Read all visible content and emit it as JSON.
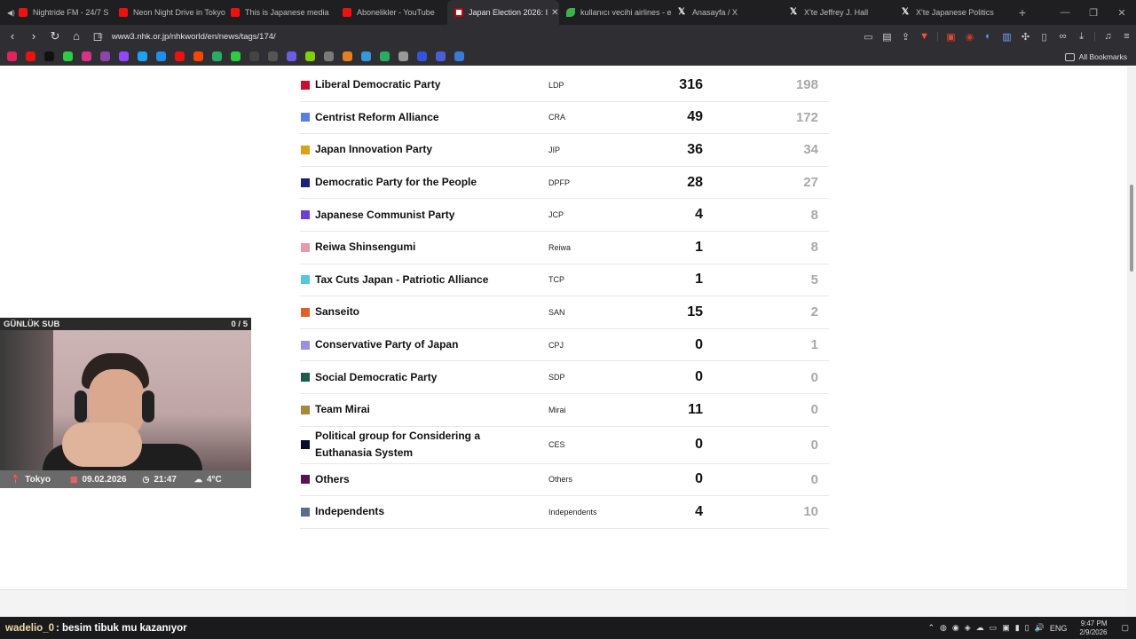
{
  "browser": {
    "tabs": [
      {
        "title": "Nightride FM - 24/7 S",
        "icon": "youtube-icon",
        "audio": true
      },
      {
        "title": "Neon Night Drive in Tokyo",
        "icon": "youtube-icon"
      },
      {
        "title": "This is Japanese media",
        "icon": "youtube-icon"
      },
      {
        "title": "Abonelikler - YouTube",
        "icon": "youtube-icon"
      },
      {
        "title": "Japan Election 2026: I",
        "icon": "nhk-icon",
        "active": true
      },
      {
        "title": "kullanıcı vecihi airlines - e",
        "icon": "leaf-icon"
      },
      {
        "title": "Anasayfa / X",
        "icon": "x-icon"
      },
      {
        "title": "X'te Jeffrey J. Hall",
        "icon": "x-icon"
      },
      {
        "title": "X'te Japanese Politics",
        "icon": "x-icon"
      }
    ],
    "new_tab": "+",
    "url": "www3.nhk.or.jp/nhkworld/en/news/tags/174/",
    "all_bookmarks": "All Bookmarks"
  },
  "results": {
    "rows": [
      {
        "name": "Liberal Democratic Party",
        "abbr": "LDP",
        "seats": "316",
        "prev": "198",
        "color": "#c8102e"
      },
      {
        "name": "Centrist Reform Alliance",
        "abbr": "CRA",
        "seats": "49",
        "prev": "172",
        "color": "#5b7fe0"
      },
      {
        "name": "Japan Innovation Party",
        "abbr": "JIP",
        "seats": "36",
        "prev": "34",
        "color": "#d9a21b"
      },
      {
        "name": "Democratic Party for the People",
        "abbr": "DPFP",
        "seats": "28",
        "prev": "27",
        "color": "#1a1f7a"
      },
      {
        "name": "Japanese Communist Party",
        "abbr": "JCP",
        "seats": "4",
        "prev": "8",
        "color": "#6a3fd1"
      },
      {
        "name": "Reiwa Shinsengumi",
        "abbr": "Reiwa",
        "seats": "1",
        "prev": "8",
        "color": "#e79aaa"
      },
      {
        "name": "Tax Cuts Japan - Patriotic Alliance",
        "abbr": "TCP",
        "seats": "1",
        "prev": "5",
        "color": "#55c8d8"
      },
      {
        "name": "Sanseito",
        "abbr": "SAN",
        "seats": "15",
        "prev": "2",
        "color": "#e0602b"
      },
      {
        "name": "Conservative Party of Japan",
        "abbr": "CPJ",
        "seats": "0",
        "prev": "1",
        "color": "#9b8fe3"
      },
      {
        "name": "Social Democratic Party",
        "abbr": "SDP",
        "seats": "0",
        "prev": "0",
        "color": "#1e5a4e"
      },
      {
        "name": "Team Mirai",
        "abbr": "Mirai",
        "seats": "11",
        "prev": "0",
        "color": "#a58a3c"
      },
      {
        "name": "Political group for Considering a Euthanasia System",
        "abbr": "CES",
        "seats": "0",
        "prev": "0",
        "color": "#0b0b2e"
      },
      {
        "name": "Others",
        "abbr": "Others",
        "seats": "0",
        "prev": "0",
        "color": "#5a1250"
      },
      {
        "name": "Independents",
        "abbr": "Independents",
        "seats": "4",
        "prev": "10",
        "color": "#5a6d8a"
      }
    ]
  },
  "overlay": {
    "label": "GÜNLÜK SUB",
    "counter": "0 / 5",
    "location": "Tokyo",
    "date": "09.02.2026",
    "time": "21:47",
    "weather": "4°C"
  },
  "taskbar": {
    "chat_user": "wadelio_0",
    "chat_message": ": besim tibuk mu kazanıyor",
    "lang": "ENG",
    "clock_time": "9:47 PM",
    "clock_date": "2/9/2026"
  }
}
